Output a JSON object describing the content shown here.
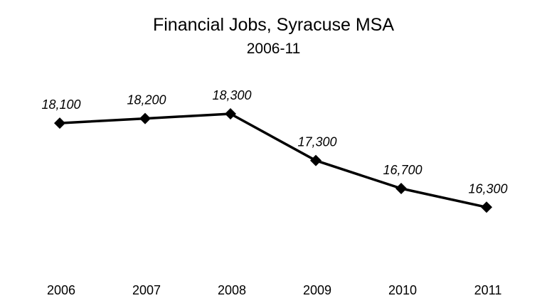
{
  "chart_data": {
    "type": "line",
    "title": "Financial Jobs, Syracuse MSA",
    "subtitle": "2006-11",
    "xlabel": "",
    "ylabel": "",
    "categories": [
      "2006",
      "2007",
      "2008",
      "2009",
      "2010",
      "2011"
    ],
    "series": [
      {
        "values": [
          18100,
          18200,
          18300,
          17300,
          16700,
          16300
        ],
        "data_labels": [
          "18,100",
          "18,200",
          "18,300",
          "17,300",
          "16,700",
          "16,300"
        ],
        "color": "#000000",
        "marker": "diamond"
      }
    ],
    "ylim": [
      14400,
      19900
    ],
    "grid": false,
    "legend": "none"
  }
}
